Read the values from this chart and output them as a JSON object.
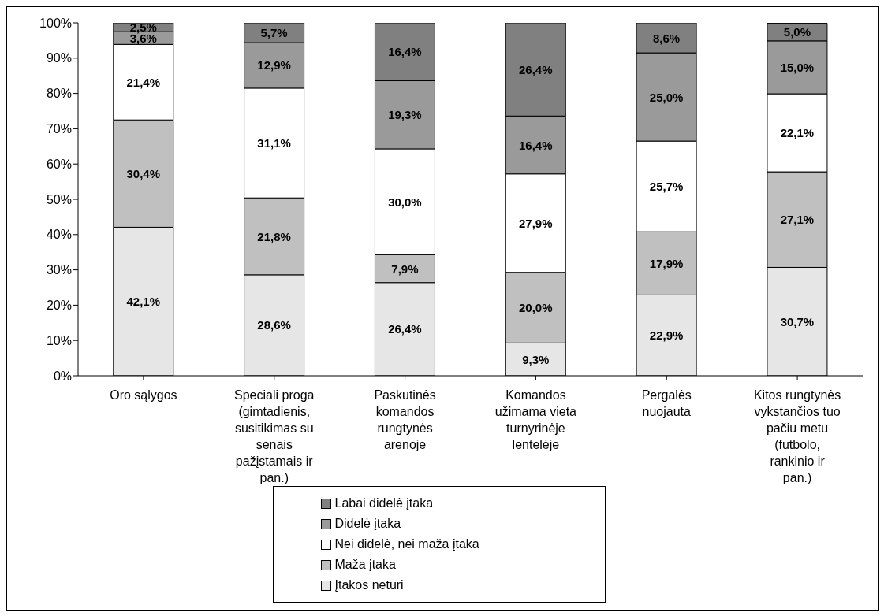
{
  "chart_data": {
    "type": "bar",
    "stacked": true,
    "categories": [
      "Oro sąlygos",
      "Speciali proga (gimtadienis, susitikimas su senais pažįstamais ir pan.)",
      "Paskutinės komandos rungtynės arenoje",
      "Komandos užimama vieta turnyrinėje lentelėje",
      "Pergalės nuojauta",
      "Kitos rungtynės vykstančios tuo pačiu metu (futbolo, rankinio ir pan.)"
    ],
    "series": [
      {
        "name": "Įtakos neturi",
        "color": "#e6e6e6",
        "values": [
          42.1,
          28.6,
          26.4,
          9.3,
          22.9,
          30.7
        ],
        "value_labels": [
          "42,1%",
          "28,6%",
          "26,4%",
          "9,3%",
          "22,9%",
          "30,7%"
        ]
      },
      {
        "name": "Maža įtaka ",
        "color": "#c0c0c0",
        "values": [
          30.4,
          21.8,
          7.9,
          20.0,
          17.9,
          27.1
        ],
        "value_labels": [
          "30,4%",
          "21,8%",
          "7,9%",
          "20,0%",
          "17,9%",
          "27,1%"
        ]
      },
      {
        "name": "Nei didelė, nei maža įtaka",
        "color": "#ffffff",
        "values": [
          21.4,
          31.1,
          30.0,
          27.9,
          25.7,
          22.1
        ],
        "value_labels": [
          "21,4%",
          "31,1%",
          "30,0%",
          "27,9%",
          "25,7%",
          "22,1%"
        ]
      },
      {
        "name": "Didelė įtaka",
        "color": "#9a9a9a",
        "values": [
          3.6,
          12.9,
          19.3,
          16.4,
          25.0,
          15.0
        ],
        "value_labels": [
          "3,6%",
          "12,9%",
          "19,3%",
          "16,4%",
          "25,0%",
          "15,0%"
        ]
      },
      {
        "name": "Labai didelė įtaka",
        "color": "#808080",
        "values": [
          2.5,
          5.7,
          16.4,
          26.4,
          8.6,
          5.0
        ],
        "value_labels": [
          "2,5%",
          "5,7%",
          "16,4%",
          "26,4%",
          "8,6%",
          "5,0%"
        ]
      }
    ],
    "ylim": [
      0,
      100
    ],
    "yticks": [
      {
        "value": 0,
        "label": "0%"
      },
      {
        "value": 10,
        "label": "10%"
      },
      {
        "value": 20,
        "label": "20%"
      },
      {
        "value": 30,
        "label": "30%"
      },
      {
        "value": 40,
        "label": "40%"
      },
      {
        "value": 50,
        "label": "50%"
      },
      {
        "value": 60,
        "label": "60%"
      },
      {
        "value": 70,
        "label": "70%"
      },
      {
        "value": 80,
        "label": "80%"
      },
      {
        "value": 90,
        "label": "90%"
      },
      {
        "value": 100,
        "label": "100%"
      }
    ],
    "legend": "bottom",
    "grid": false
  }
}
